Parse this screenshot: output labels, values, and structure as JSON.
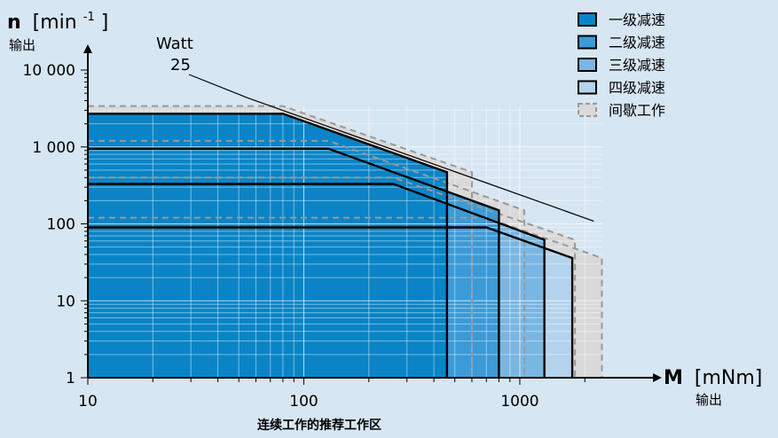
{
  "chart_data": {
    "type": "area",
    "x_scale": "log",
    "y_scale": "log",
    "xlim": [
      10,
      2700
    ],
    "ylim": [
      1,
      10000
    ],
    "x_ticks": [
      "10",
      "100",
      "1000"
    ],
    "y_ticks": [
      "1",
      "10",
      "100",
      "1 000",
      "10 000"
    ],
    "y_axis": {
      "symbol": "n",
      "unit": "[min-1]",
      "unit_base": "[min",
      "unit_sup": "-1",
      "unit_close": "]",
      "sub": "输出"
    },
    "x_axis": {
      "symbol": "M",
      "unit": "[mNm]",
      "sub": "输出"
    },
    "xlabel": "连续工作的推荐工作区",
    "power_line": {
      "label_top": "Watt",
      "label_bottom": "25",
      "watts": 25
    },
    "legend": [
      {
        "label": "一级减速",
        "color": "#0a84c6",
        "border": "#000000",
        "dashed": false
      },
      {
        "label": "二级减速",
        "color": "#3c9ad6",
        "border": "#000000",
        "dashed": false
      },
      {
        "label": "三级减速",
        "color": "#7ab6e2",
        "border": "#000000",
        "dashed": false
      },
      {
        "label": "四级减速",
        "color": "#b4d3ee",
        "border": "#000000",
        "dashed": false
      },
      {
        "label": "间歇工作",
        "color": "#d9d9d9",
        "border": "#999999",
        "dashed": true
      }
    ],
    "series": [
      {
        "name": "一级减速",
        "color": "#0a84c6",
        "points": [
          [
            10,
            2700
          ],
          [
            80,
            2700
          ],
          [
            460,
            470
          ],
          [
            460,
            1
          ]
        ]
      },
      {
        "name": "二级减速",
        "color": "#3c9ad6",
        "points": [
          [
            10,
            950
          ],
          [
            130,
            950
          ],
          [
            800,
            150
          ],
          [
            800,
            1
          ]
        ]
      },
      {
        "name": "三级减速",
        "color": "#7ab6e2",
        "points": [
          [
            10,
            330
          ],
          [
            260,
            330
          ],
          [
            1300,
            62
          ],
          [
            1300,
            1
          ]
        ]
      },
      {
        "name": "四级减速",
        "color": "#b4d3ee",
        "points": [
          [
            10,
            90
          ],
          [
            700,
            90
          ],
          [
            1750,
            36
          ],
          [
            1750,
            1
          ]
        ]
      }
    ],
    "intermittent": [
      {
        "name": "一级减速",
        "points": [
          [
            10,
            3400
          ],
          [
            80,
            3400
          ],
          [
            600,
            470
          ],
          [
            600,
            1
          ]
        ]
      },
      {
        "name": "二级减速",
        "points": [
          [
            10,
            1200
          ],
          [
            130,
            1200
          ],
          [
            1050,
            150
          ],
          [
            1050,
            1
          ]
        ]
      },
      {
        "name": "三级减速",
        "points": [
          [
            10,
            400
          ],
          [
            260,
            400
          ],
          [
            1800,
            62
          ],
          [
            1800,
            1
          ]
        ]
      },
      {
        "name": "四级减速",
        "points": [
          [
            10,
            120
          ],
          [
            700,
            120
          ],
          [
            2400,
            36
          ],
          [
            2400,
            1
          ]
        ]
      }
    ]
  }
}
